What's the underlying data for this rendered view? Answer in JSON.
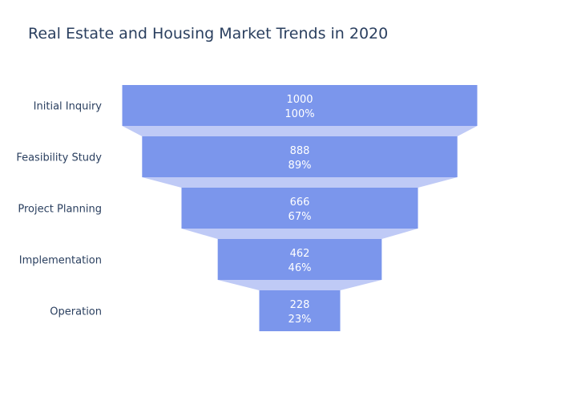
{
  "chart_data": {
    "type": "funnel",
    "title": "Real Estate and Housing Market Trends in 2020",
    "categories": [
      "Initial Inquiry",
      "Feasibility Study",
      "Project Planning",
      "Implementation",
      "Operation"
    ],
    "values": [
      1000,
      888,
      666,
      462,
      228
    ],
    "percent_labels": [
      "100%",
      "89%",
      "67%",
      "46%",
      "23%"
    ],
    "colors": {
      "bar": "#7b96ec",
      "connector": "#bfcaf6",
      "label_text": "#ffffff",
      "axis_text": "#2a3f5f"
    }
  }
}
